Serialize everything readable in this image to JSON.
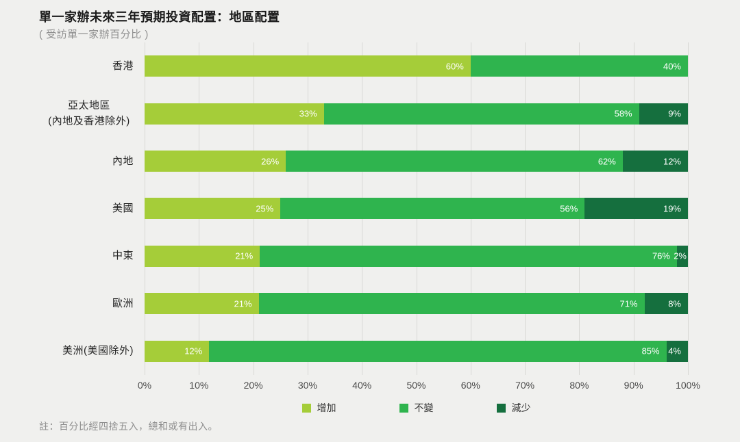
{
  "header": {
    "title": "單一家辦未來三年預期投資配置：地區配置",
    "subtitle": "( 受訪單一家辦百分比 )"
  },
  "note": "註：百分比經四捨五入，總和或有出入。",
  "colors": {
    "background": "#f0f0ee",
    "gridline": "#d8d8d5",
    "increase": "#a5cd39",
    "unchanged": "#2fb44e",
    "decrease": "#156f3e"
  },
  "chart_data": {
    "type": "bar",
    "orientation": "horizontal",
    "stacked": true,
    "percent_total": 100,
    "grid": true,
    "legend_position": "bottom",
    "xlim": [
      0,
      100
    ],
    "x_ticks": [
      "0%",
      "10%",
      "20%",
      "30%",
      "40%",
      "50%",
      "60%",
      "70%",
      "80%",
      "90%",
      "100%"
    ],
    "categories": [
      "香港",
      "亞太地區\n(內地及香港除外)",
      "內地",
      "美國",
      "中東",
      "歐洲",
      "美洲(美國除外)"
    ],
    "series": [
      {
        "name": "增加",
        "color": "#a5cd39",
        "values": [
          60,
          33,
          26,
          25,
          21,
          21,
          12
        ]
      },
      {
        "name": "不變",
        "color": "#2fb44e",
        "values": [
          40,
          58,
          62,
          56,
          76,
          71,
          85
        ]
      },
      {
        "name": "減少",
        "color": "#156f3e",
        "values": [
          0,
          9,
          12,
          19,
          2,
          8,
          4
        ]
      }
    ],
    "legend": [
      {
        "label": "增加",
        "color": "#a5cd39"
      },
      {
        "label": "不變",
        "color": "#2fb44e"
      },
      {
        "label": "減少",
        "color": "#156f3e"
      }
    ]
  }
}
